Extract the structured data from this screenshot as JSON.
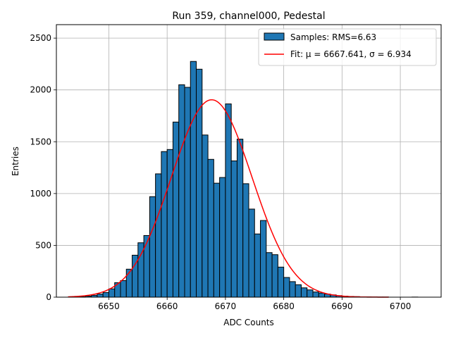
{
  "chart_data": {
    "type": "bar",
    "title": "Run 359, channel000, Pedestal",
    "xlabel": "ADC Counts",
    "ylabel": "Entries",
    "xlim": [
      6641,
      6707
    ],
    "ylim": [
      0,
      2630
    ],
    "xticks": [
      6650,
      6660,
      6670,
      6680,
      6690,
      6700
    ],
    "yticks": [
      0,
      500,
      1000,
      1500,
      2000,
      2500
    ],
    "grid": true,
    "legend_position": "top-right",
    "bin_width": 1,
    "bin_start": 6644,
    "counts": [
      2,
      4,
      10,
      18,
      30,
      45,
      80,
      140,
      160,
      270,
      405,
      525,
      595,
      970,
      1190,
      1405,
      1425,
      1690,
      2050,
      2025,
      2275,
      2200,
      1565,
      1330,
      1100,
      1155,
      1865,
      1315,
      1525,
      1095,
      850,
      610,
      740,
      430,
      410,
      290,
      190,
      150,
      120,
      90,
      70,
      50,
      40,
      30,
      22,
      15,
      10,
      7,
      5,
      3,
      2,
      1,
      1,
      1,
      0,
      0,
      0,
      0,
      1,
      0
    ],
    "series": [
      {
        "name": "Samples: RMS=6.63",
        "kind": "histogram",
        "color": "#1f77b4"
      },
      {
        "name": "Fit: μ = 6667.641, σ = 6.934",
        "kind": "gaussian-fit",
        "color": "#ff0000",
        "mu": 6667.641,
        "sigma": 6.934,
        "amplitude": 1905,
        "x_range": [
          6643,
          6698
        ]
      }
    ]
  }
}
